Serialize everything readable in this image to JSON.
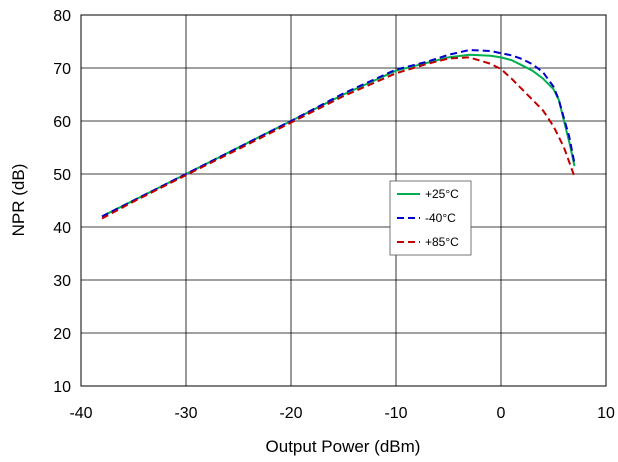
{
  "chart_data": {
    "type": "line",
    "title": "",
    "xlabel": "Output Power (dBm)",
    "ylabel": "NPR (dB)",
    "xlim": [
      -40,
      10
    ],
    "ylim": [
      10,
      80
    ],
    "xticks": [
      -40,
      -30,
      -20,
      -10,
      0,
      10
    ],
    "yticks": [
      10,
      20,
      30,
      40,
      50,
      60,
      70,
      80
    ],
    "grid": true,
    "legend_position": "center-right",
    "series": [
      {
        "name": "+25°C",
        "color": "#00b050",
        "dash": "solid",
        "x": [
          -38,
          -35,
          -30,
          -25,
          -20,
          -15,
          -10,
          -7,
          -5,
          -3,
          -1,
          0,
          1,
          2,
          3,
          4,
          5,
          5.5,
          6,
          6.5,
          7
        ],
        "y": [
          42,
          45,
          50,
          55,
          60,
          65,
          69.5,
          71,
          72,
          72.5,
          72.3,
          72,
          71.5,
          70.5,
          69.5,
          68,
          66,
          64,
          60,
          56,
          51.5
        ]
      },
      {
        "name": "-40°C",
        "color": "#0000cc",
        "dash": "dashed",
        "x": [
          -38,
          -35,
          -30,
          -25,
          -20,
          -15,
          -10,
          -7,
          -5,
          -3,
          -1,
          0,
          1,
          2,
          3,
          4,
          5,
          5.5,
          6,
          6.5,
          7
        ],
        "y": [
          42,
          45,
          50,
          55,
          60,
          65.2,
          69.7,
          71.2,
          72.5,
          73.4,
          73.2,
          72.8,
          72.4,
          71.7,
          70.7,
          69.2,
          66.5,
          64,
          60.5,
          57,
          52
        ]
      },
      {
        "name": "+85°C",
        "color": "#c00000",
        "dash": "dashed",
        "x": [
          -38,
          -35,
          -30,
          -25,
          -20,
          -15,
          -10,
          -7,
          -5,
          -3,
          -1,
          0,
          1,
          2,
          3,
          4,
          5,
          6,
          7
        ],
        "y": [
          41.6,
          44.8,
          49.8,
          54.7,
          59.7,
          64.7,
          69,
          70.8,
          71.8,
          72,
          70.8,
          69.8,
          68,
          66,
          64,
          62,
          59,
          55,
          49.5
        ]
      }
    ]
  }
}
